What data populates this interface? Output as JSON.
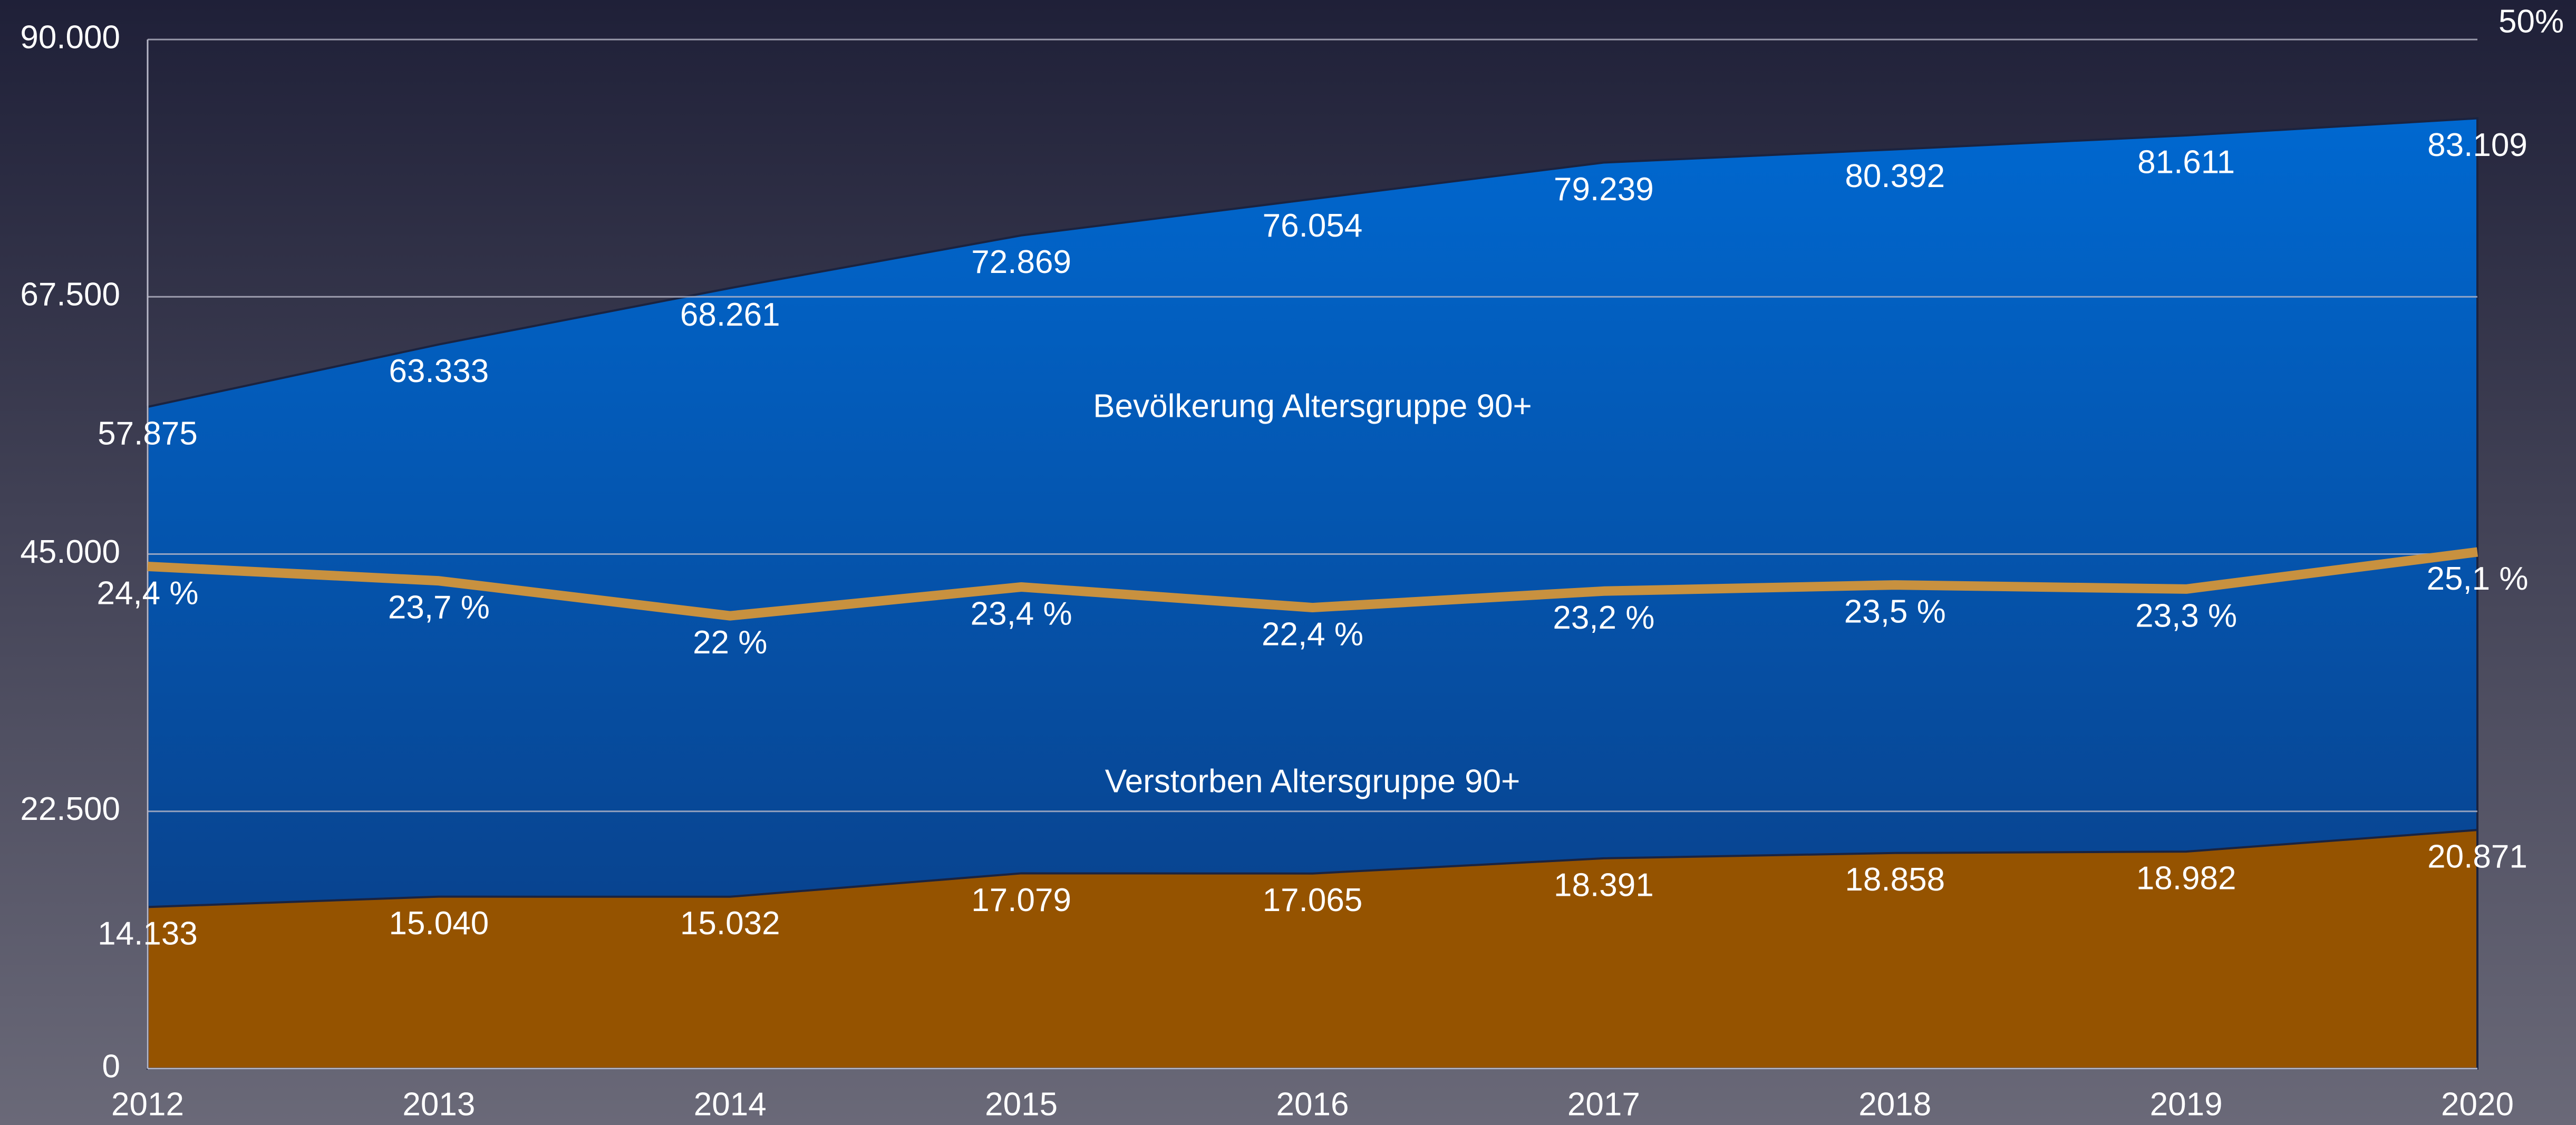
{
  "chart_data": {
    "type": "area",
    "categories": [
      "2012",
      "2013",
      "2014",
      "2015",
      "2016",
      "2017",
      "2018",
      "2019",
      "2020"
    ],
    "series": [
      {
        "name": "Bevölkerung Altersgruppe 90+",
        "color": "#0062c4",
        "type": "area",
        "values": [
          57875,
          63333,
          68261,
          72869,
          76054,
          79239,
          80392,
          81611,
          83109
        ],
        "value_labels": [
          "57.875",
          "63.333",
          "68.261",
          "72.869",
          "76.054",
          "79.239",
          "80.392",
          "81.611",
          "83.109"
        ]
      },
      {
        "name": "Verstorben Altersgruppe 90+",
        "color": "#955300",
        "type": "area",
        "values": [
          14133,
          15040,
          15032,
          17079,
          17065,
          18391,
          18858,
          18982,
          20871
        ],
        "value_labels": [
          "14.133",
          "15.040",
          "15.032",
          "17.079",
          "17.065",
          "18.391",
          "18.858",
          "18.982",
          "20.871"
        ]
      },
      {
        "color": "#c8913f",
        "type": "line",
        "axis": "y2",
        "values": [
          24.4,
          23.7,
          22,
          23.4,
          22.4,
          23.2,
          23.5,
          23.3,
          25.1
        ],
        "value_labels": [
          "24,4 %",
          "23,7 %",
          "22 %",
          "23,4 %",
          "22,4 %",
          "23,2 %",
          "23,5 %",
          "23,3 %",
          "25,1 %"
        ]
      }
    ],
    "ylim": [
      0,
      90000
    ],
    "yticks": [
      0,
      {
        "value": 22500,
        "label": "22.500"
      },
      {
        "value": 45000,
        "label": "45.000"
      },
      {
        "value": 67500,
        "label": "67.500"
      },
      {
        "value": 90000,
        "label": "90.000"
      }
    ],
    "y2lim": [
      0,
      50
    ],
    "y2ticks": [
      {
        "value": 50,
        "label": "50%"
      }
    ],
    "grid": true
  }
}
